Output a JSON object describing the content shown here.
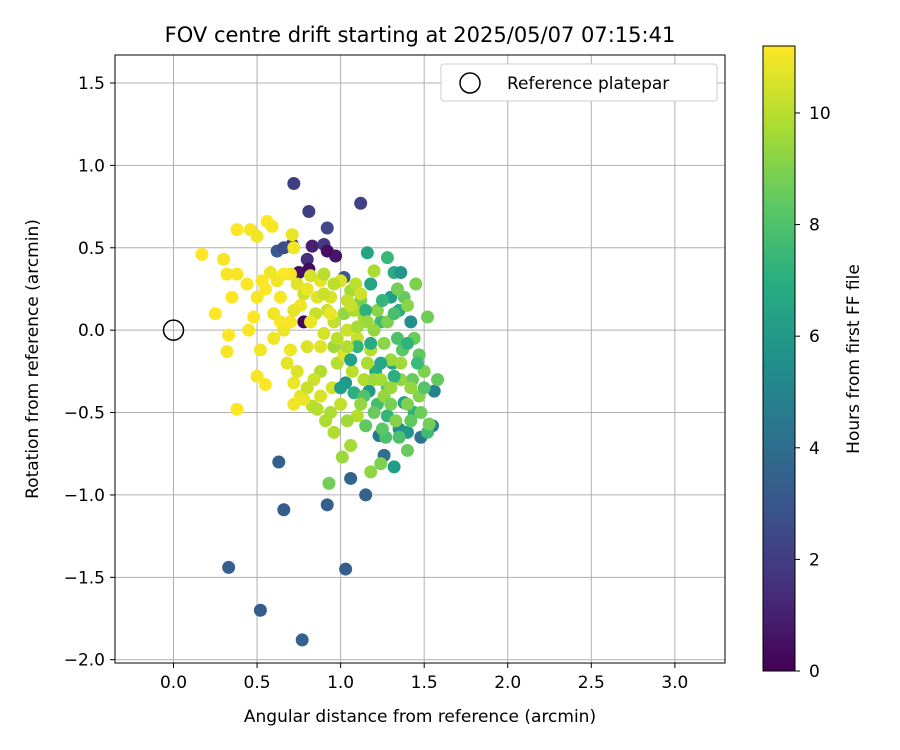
{
  "chart_data": {
    "type": "scatter",
    "title": "FOV centre drift starting at 2025/05/07 07:15:41",
    "xlabel": "Angular distance from reference (arcmin)",
    "ylabel": "Rotation from reference (arcmin)",
    "xlim": [
      -0.35,
      3.3
    ],
    "ylim": [
      -2.02,
      1.67
    ],
    "xticks": [
      0.0,
      0.5,
      1.0,
      1.5,
      2.0,
      2.5,
      3.0
    ],
    "xtick_labels": [
      "0.0",
      "0.5",
      "1.0",
      "1.5",
      "2.0",
      "2.5",
      "3.0"
    ],
    "yticks": [
      -2.0,
      -1.5,
      -1.0,
      -0.5,
      0.0,
      0.5,
      1.0,
      1.5
    ],
    "ytick_labels": [
      "−2.0",
      "−1.5",
      "−1.0",
      "−0.5",
      "0.0",
      "0.5",
      "1.0",
      "1.5"
    ],
    "grid": true,
    "legend": {
      "placement": "top-right",
      "entries": [
        "Reference platepar"
      ]
    },
    "reference_point": {
      "x": 0.0,
      "y": 0.0,
      "label": "Reference platepar"
    },
    "colorbar": {
      "label": "Hours from first FF file",
      "colormap": "viridis",
      "range": [
        0,
        11.2
      ],
      "ticks": [
        0,
        2,
        4,
        6,
        8,
        10
      ],
      "tick_labels": [
        "0",
        "2",
        "4",
        "6",
        "8",
        "10"
      ]
    },
    "series": [
      {
        "points": [
          [
            0.72,
            0.89,
            2.0
          ],
          [
            0.81,
            0.72,
            2.1
          ],
          [
            1.12,
            0.77,
            2.2
          ],
          [
            0.92,
            0.62,
            2.4
          ],
          [
            0.83,
            0.51,
            1.0
          ],
          [
            0.71,
            0.52,
            1.8
          ],
          [
            0.8,
            0.43,
            1.5
          ],
          [
            0.9,
            0.52,
            1.9
          ],
          [
            0.75,
            0.35,
            0.5
          ],
          [
            0.81,
            0.37,
            0.3
          ],
          [
            0.97,
            0.45,
            0.7
          ],
          [
            0.78,
            0.05,
            0.2
          ],
          [
            0.92,
            0.48,
            0.4
          ],
          [
            1.02,
            0.32,
            3.2
          ],
          [
            0.62,
            0.48,
            3.2
          ],
          [
            0.66,
            0.5,
            2.6
          ],
          [
            1.16,
            0.47,
            6.5
          ],
          [
            0.63,
            -0.8,
            3.4
          ],
          [
            0.66,
            -1.09,
            3.3
          ],
          [
            0.92,
            -1.06,
            3.4
          ],
          [
            1.06,
            -0.9,
            3.6
          ],
          [
            1.15,
            -1.0,
            3.5
          ],
          [
            0.33,
            -1.44,
            3.4
          ],
          [
            1.03,
            -1.45,
            3.3
          ],
          [
            0.52,
            -1.7,
            3.2
          ],
          [
            0.77,
            -1.88,
            3.4
          ],
          [
            1.26,
            -0.76,
            4.0
          ],
          [
            1.32,
            -0.83,
            6.2
          ],
          [
            0.93,
            -0.93,
            8.8
          ],
          [
            1.23,
            -0.64,
            4.5
          ],
          [
            1.35,
            -0.6,
            5.5
          ],
          [
            1.55,
            -0.58,
            4.8
          ],
          [
            1.56,
            -0.37,
            5.0
          ],
          [
            1.48,
            -0.65,
            4.2
          ],
          [
            1.4,
            -0.62,
            6.0
          ],
          [
            1.28,
            0.44,
            7.5
          ],
          [
            1.32,
            0.35,
            6.8
          ],
          [
            1.36,
            0.35,
            5.8
          ],
          [
            1.18,
            0.28,
            6.5
          ],
          [
            1.3,
            0.2,
            6.2
          ],
          [
            1.35,
            0.12,
            6.8
          ],
          [
            1.42,
            0.05,
            5.6
          ],
          [
            1.21,
            -0.25,
            6.9
          ],
          [
            1.31,
            -0.2,
            6.5
          ],
          [
            1.17,
            -0.37,
            6.0
          ],
          [
            1.38,
            -0.44,
            6.3
          ],
          [
            1.44,
            -0.5,
            7.2
          ],
          [
            1.03,
            -0.32,
            6.0
          ],
          [
            1.08,
            -0.38,
            7.0
          ],
          [
            1.28,
            -0.52,
            7.3
          ],
          [
            1.22,
            -0.45,
            7.8
          ],
          [
            1.52,
            -0.62,
            7.7
          ],
          [
            1.15,
            -0.58,
            8.4
          ],
          [
            1.27,
            -0.65,
            8.0
          ],
          [
            1.18,
            -0.86,
            9.3
          ],
          [
            1.24,
            -0.81,
            9.0
          ],
          [
            1.4,
            -0.73,
            8.6
          ],
          [
            1.43,
            -0.3,
            8.5
          ],
          [
            1.47,
            -0.15,
            8.4
          ],
          [
            1.52,
            0.08,
            8.7
          ],
          [
            1.45,
            0.28,
            9.0
          ],
          [
            1.38,
            0.2,
            8.5
          ],
          [
            1.47,
            -0.4,
            9.1
          ],
          [
            1.53,
            -0.57,
            8.8
          ],
          [
            1.58,
            -0.3,
            8.5
          ],
          [
            1.5,
            -0.25,
            9.0
          ],
          [
            1.28,
            -0.35,
            8.2
          ],
          [
            1.34,
            -0.05,
            8.0
          ],
          [
            1.24,
            0.05,
            7.6
          ],
          [
            1.12,
            0.18,
            8.9
          ],
          [
            1.06,
            0.24,
            9.6
          ],
          [
            1.2,
            0.36,
            9.8
          ],
          [
            1.09,
            0.28,
            10.1
          ],
          [
            1.02,
            0.1,
            9.4
          ],
          [
            0.96,
            -0.1,
            9.6
          ],
          [
            0.88,
            -0.25,
            9.9
          ],
          [
            0.83,
            -0.46,
            10.1
          ],
          [
            0.91,
            -0.55,
            9.8
          ],
          [
            0.96,
            -0.62,
            9.9
          ],
          [
            1.01,
            -0.77,
            9.5
          ],
          [
            1.06,
            -0.7,
            9.7
          ],
          [
            1.0,
            -0.45,
            10.2
          ],
          [
            1.1,
            -0.52,
            10.0
          ],
          [
            1.14,
            -0.3,
            9.9
          ],
          [
            1.18,
            -0.12,
            10.0
          ],
          [
            1.1,
            -0.05,
            10.3
          ],
          [
            1.04,
            0.0,
            10.4
          ],
          [
            0.96,
            0.05,
            10.2
          ],
          [
            0.9,
            -0.02,
            10.5
          ],
          [
            0.85,
            0.1,
            10.3
          ],
          [
            0.78,
            0.22,
            10.4
          ],
          [
            0.74,
            0.28,
            10.7
          ],
          [
            0.8,
            -0.1,
            10.6
          ],
          [
            0.84,
            -0.3,
            10.4
          ],
          [
            0.76,
            -0.4,
            10.8
          ],
          [
            0.72,
            -0.32,
            10.9
          ],
          [
            0.7,
            -0.12,
            11.0
          ],
          [
            0.66,
            0.0,
            10.9
          ],
          [
            0.6,
            0.1,
            11.0
          ],
          [
            0.64,
            0.2,
            11.1
          ],
          [
            0.7,
            0.34,
            11.0
          ],
          [
            0.66,
            0.34,
            11.2
          ],
          [
            0.58,
            0.35,
            11.0
          ],
          [
            0.53,
            0.3,
            11.1
          ],
          [
            0.5,
            0.2,
            11.1
          ],
          [
            0.48,
            0.08,
            11.2
          ],
          [
            0.45,
            0.0,
            11.1
          ],
          [
            0.52,
            -0.12,
            11.0
          ],
          [
            0.5,
            -0.28,
            11.1
          ],
          [
            0.55,
            -0.33,
            11.2
          ],
          [
            0.33,
            -0.03,
            11.2
          ],
          [
            0.32,
            -0.13,
            11.1
          ],
          [
            0.25,
            0.1,
            11.2
          ],
          [
            0.32,
            0.34,
            11.1
          ],
          [
            0.35,
            0.2,
            11.2
          ],
          [
            0.38,
            0.34,
            11.1
          ],
          [
            0.3,
            0.43,
            11.1
          ],
          [
            0.17,
            0.46,
            11.2
          ],
          [
            0.38,
            0.61,
            11.2
          ],
          [
            0.46,
            0.61,
            11.1
          ],
          [
            0.5,
            0.57,
            11.0
          ],
          [
            0.56,
            0.66,
            11.2
          ],
          [
            0.59,
            0.63,
            11.1
          ],
          [
            0.71,
            0.58,
            10.9
          ],
          [
            0.72,
            0.5,
            11.0
          ],
          [
            0.38,
            -0.48,
            11.2
          ],
          [
            0.72,
            -0.45,
            11.0
          ],
          [
            0.78,
            -0.42,
            10.9
          ],
          [
            0.88,
            -0.4,
            10.6
          ],
          [
            0.95,
            -0.35,
            10.5
          ],
          [
            1.07,
            -0.25,
            10.1
          ],
          [
            1.12,
            0.22,
            10.4
          ],
          [
            1.04,
            0.18,
            10.2
          ],
          [
            0.94,
            0.2,
            10.6
          ],
          [
            0.88,
            0.3,
            10.8
          ],
          [
            0.82,
            0.33,
            10.5
          ],
          [
            0.9,
            0.34,
            10.0
          ],
          [
            0.92,
            0.12,
            10.4
          ],
          [
            0.98,
            -0.2,
            10.0
          ],
          [
            1.02,
            -0.15,
            10.6
          ],
          [
            1.08,
            0.12,
            9.8
          ],
          [
            1.14,
            0.08,
            9.6
          ],
          [
            1.2,
            0.0,
            9.4
          ],
          [
            1.26,
            -0.08,
            9.2
          ],
          [
            1.3,
            -0.18,
            9.5
          ],
          [
            1.36,
            -0.3,
            9.3
          ],
          [
            1.4,
            -0.45,
            9.0
          ],
          [
            1.33,
            -0.55,
            9.1
          ],
          [
            1.26,
            -0.4,
            9.4
          ],
          [
            1.2,
            -0.3,
            9.6
          ],
          [
            1.16,
            -0.2,
            9.8
          ],
          [
            1.22,
            0.12,
            9.2
          ],
          [
            1.28,
            0.05,
            9.0
          ],
          [
            1.34,
            0.25,
            8.8
          ],
          [
            1.4,
            0.15,
            9.2
          ],
          [
            1.44,
            -0.05,
            8.6
          ],
          [
            1.37,
            -0.12,
            8.3
          ],
          [
            1.32,
            0.1,
            7.9
          ],
          [
            1.25,
            0.18,
            7.4
          ],
          [
            1.15,
            0.12,
            7.1
          ],
          [
            1.1,
            -0.1,
            7.4
          ],
          [
            1.14,
            -0.4,
            8.1
          ],
          [
            1.2,
            -0.5,
            8.6
          ],
          [
            1.3,
            -0.45,
            8.9
          ],
          [
            1.25,
            -0.6,
            8.3
          ],
          [
            1.35,
            -0.65,
            8.0
          ],
          [
            1.42,
            -0.55,
            8.4
          ],
          [
            1.48,
            -0.5,
            8.7
          ],
          [
            1.5,
            -0.35,
            8.2
          ],
          [
            1.46,
            -0.2,
            7.6
          ],
          [
            1.4,
            -0.08,
            7.2
          ],
          [
            1.32,
            -0.28,
            7.0
          ],
          [
            1.24,
            -0.2,
            6.6
          ],
          [
            1.18,
            -0.08,
            6.8
          ],
          [
            1.06,
            -0.18,
            6.4
          ],
          [
            1.0,
            -0.35,
            6.2
          ],
          [
            1.06,
            0.15,
            10.3
          ],
          [
            1.0,
            0.3,
            10.6
          ],
          [
            0.94,
            0.1,
            10.9
          ],
          [
            0.88,
            -0.1,
            10.7
          ],
          [
            0.82,
            0.05,
            10.9
          ],
          [
            0.76,
            0.15,
            11.0
          ],
          [
            0.7,
            0.05,
            11.1
          ],
          [
            0.64,
            0.05,
            11.1
          ],
          [
            0.6,
            -0.05,
            11.0
          ],
          [
            0.68,
            -0.2,
            10.8
          ],
          [
            0.74,
            -0.25,
            10.6
          ],
          [
            0.8,
            -0.35,
            10.3
          ],
          [
            0.86,
            -0.48,
            10.0
          ],
          [
            0.94,
            -0.5,
            9.8
          ],
          [
            1.04,
            -0.55,
            9.6
          ],
          [
            1.12,
            -0.45,
            9.4
          ],
          [
            0.98,
            -0.05,
            10.1
          ],
          [
            1.04,
            -0.1,
            9.9
          ],
          [
            1.1,
            0.02,
            9.7
          ],
          [
            1.16,
            0.05,
            9.5
          ],
          [
            1.24,
            -0.3,
            9.7
          ],
          [
            1.3,
            -0.35,
            9.5
          ],
          [
            1.36,
            -0.2,
            9.6
          ],
          [
            1.42,
            -0.35,
            9.4
          ],
          [
            0.86,
            0.2,
            10.7
          ],
          [
            0.9,
            0.22,
            10.3
          ],
          [
            0.96,
            0.28,
            10.1
          ],
          [
            0.8,
            0.25,
            10.9
          ],
          [
            0.72,
            0.12,
            10.8
          ],
          [
            0.62,
            0.3,
            11.0
          ],
          [
            0.55,
            0.25,
            11.2
          ],
          [
            0.44,
            0.28,
            11.2
          ]
        ]
      }
    ]
  }
}
